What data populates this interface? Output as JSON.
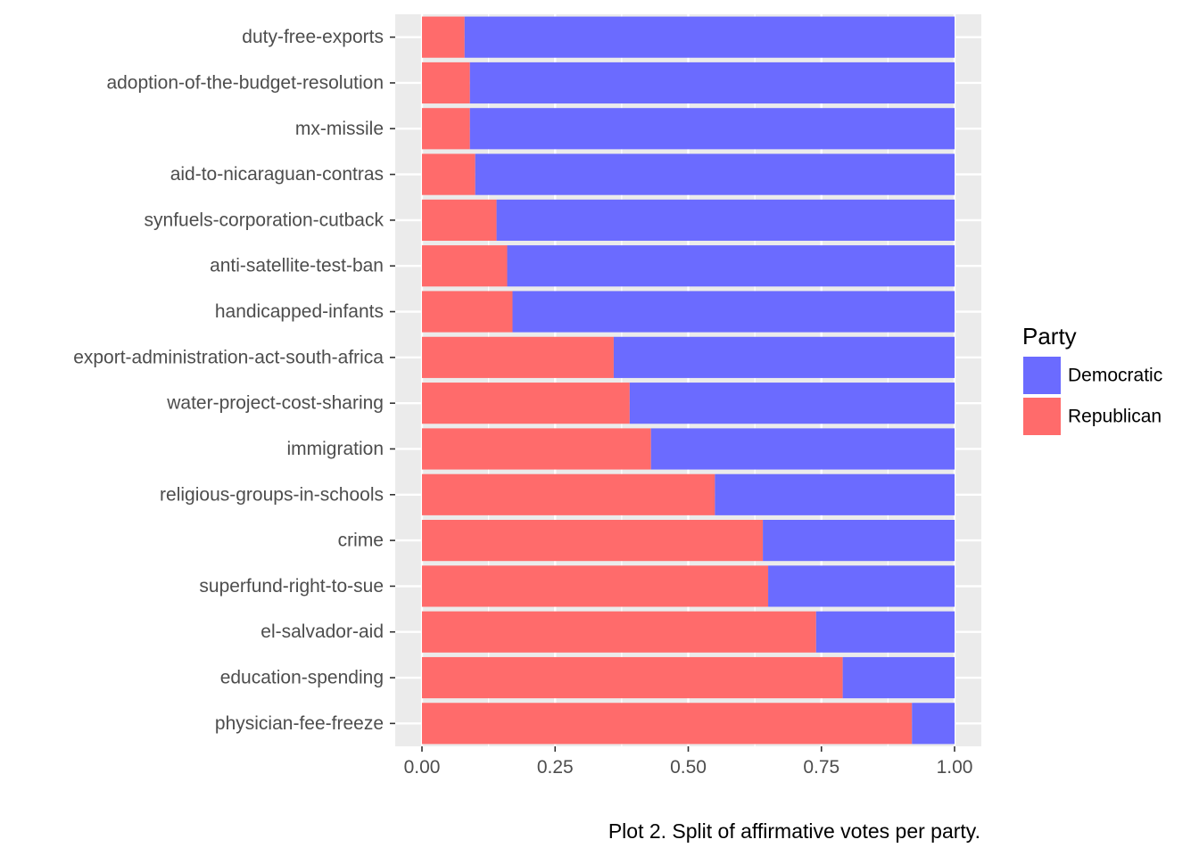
{
  "chart_data": {
    "type": "bar",
    "orientation": "horizontal",
    "stacking": "fill",
    "categories": [
      "duty-free-exports",
      "adoption-of-the-budget-resolution",
      "mx-missile",
      "aid-to-nicaraguan-contras",
      "synfuels-corporation-cutback",
      "anti-satellite-test-ban",
      "handicapped-infants",
      "export-administration-act-south-africa",
      "water-project-cost-sharing",
      "immigration",
      "religious-groups-in-schools",
      "crime",
      "superfund-right-to-sue",
      "el-salvador-aid",
      "education-spending",
      "physician-fee-freeze"
    ],
    "series": [
      {
        "name": "Republican",
        "color": "#ff6b6b",
        "values": [
          0.08,
          0.09,
          0.09,
          0.1,
          0.14,
          0.16,
          0.17,
          0.36,
          0.39,
          0.43,
          0.55,
          0.64,
          0.65,
          0.74,
          0.79,
          0.92
        ]
      },
      {
        "name": "Democratic",
        "color": "#6b6bff",
        "values": [
          0.92,
          0.91,
          0.91,
          0.9,
          0.86,
          0.84,
          0.83,
          0.64,
          0.61,
          0.57,
          0.45,
          0.36,
          0.35,
          0.26,
          0.21,
          0.08
        ]
      }
    ],
    "xlim": [
      0,
      1
    ],
    "xticks": [
      0,
      0.25,
      0.5,
      0.75,
      1
    ],
    "xtick_labels": [
      "0.00",
      "0.25",
      "0.50",
      "0.75",
      "1.00"
    ],
    "xlabel": "",
    "ylabel": "",
    "grid": true,
    "panel_background": "#ebebeb",
    "legend": {
      "title": "Party",
      "position": "right",
      "entries": [
        {
          "label": "Democratic",
          "color": "#6b6bff"
        },
        {
          "label": "Republican",
          "color": "#ff6b6b"
        }
      ]
    },
    "caption": "Plot 2. Split of affirmative votes per party."
  }
}
